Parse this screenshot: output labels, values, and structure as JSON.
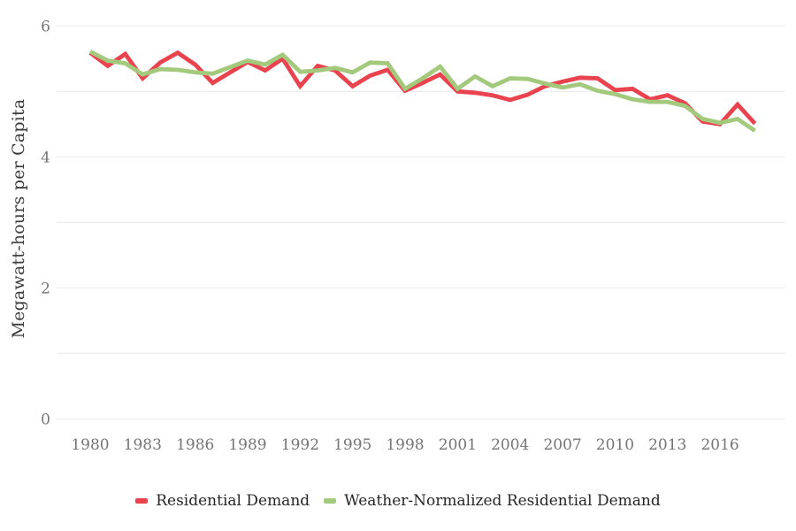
{
  "chart_data": {
    "type": "line",
    "title": "",
    "xlabel": "",
    "ylabel": "Megawatt-hours per Capita",
    "ylim": [
      0,
      6
    ],
    "grid": "horizontal",
    "grid_y_values": [
      0,
      1,
      2,
      3,
      4,
      5,
      6
    ],
    "y_ticks": [
      {
        "value": 0,
        "label": "0"
      },
      {
        "value": 2,
        "label": "2"
      },
      {
        "value": 4,
        "label": "4"
      },
      {
        "value": 6,
        "label": "6"
      }
    ],
    "x_ticks": [
      {
        "value": 1980,
        "label": "1980"
      },
      {
        "value": 1983,
        "label": "1983"
      },
      {
        "value": 1986,
        "label": "1986"
      },
      {
        "value": 1989,
        "label": "1989"
      },
      {
        "value": 1992,
        "label": "1992"
      },
      {
        "value": 1995,
        "label": "1995"
      },
      {
        "value": 1998,
        "label": "1998"
      },
      {
        "value": 2001,
        "label": "2001"
      },
      {
        "value": 2004,
        "label": "2004"
      },
      {
        "value": 2007,
        "label": "2007"
      },
      {
        "value": 2010,
        "label": "2010"
      },
      {
        "value": 2013,
        "label": "2013"
      },
      {
        "value": 2016,
        "label": "2016"
      }
    ],
    "x": [
      1980,
      1981,
      1982,
      1983,
      1984,
      1985,
      1986,
      1987,
      1988,
      1989,
      1990,
      1991,
      1992,
      1993,
      1994,
      1995,
      1996,
      1997,
      1998,
      1999,
      2000,
      2001,
      2002,
      2003,
      2004,
      2005,
      2006,
      2007,
      2008,
      2009,
      2010,
      2011,
      2012,
      2013,
      2014,
      2015,
      2016,
      2017,
      2018
    ],
    "series": [
      {
        "name": "Residential Demand",
        "color": "#E8434E",
        "values": [
          5.59,
          5.39,
          5.57,
          5.2,
          5.44,
          5.59,
          5.41,
          5.13,
          5.29,
          5.45,
          5.32,
          5.5,
          5.08,
          5.39,
          5.32,
          5.08,
          5.24,
          5.33,
          5.01,
          5.13,
          5.26,
          5.0,
          4.98,
          4.94,
          4.87,
          4.95,
          5.08,
          5.15,
          5.21,
          5.2,
          5.02,
          5.04,
          4.88,
          4.94,
          4.82,
          4.54,
          4.5,
          4.8,
          4.51
        ]
      },
      {
        "name": "Weather-Normalized Residential Demand",
        "color": "#A3C97D",
        "values": [
          5.61,
          5.47,
          5.43,
          5.26,
          5.34,
          5.33,
          5.29,
          5.27,
          5.37,
          5.47,
          5.41,
          5.56,
          5.3,
          5.32,
          5.36,
          5.29,
          5.44,
          5.43,
          5.04,
          5.2,
          5.38,
          5.04,
          5.23,
          5.08,
          5.2,
          5.19,
          5.12,
          5.06,
          5.11,
          5.01,
          4.96,
          4.88,
          4.84,
          4.84,
          4.78,
          4.58,
          4.52,
          4.58,
          4.4
        ]
      }
    ],
    "legend_position": "bottom"
  },
  "colors": {
    "background": "#FFFFFF",
    "gridline": "#E7E7E7",
    "tick_text": "#757575",
    "axis_title_text": "#3C3C3C",
    "legend_text": "#262626"
  }
}
